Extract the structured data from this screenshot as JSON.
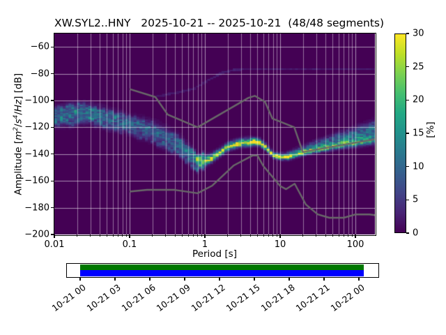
{
  "title": "XW.SYL2..HNY   2025-10-21 -- 2025-10-21  (48/48 segments)",
  "axes": {
    "xlabel": "Period [s]",
    "ylabel_parts": [
      {
        "t": "Amplitude ["
      },
      {
        "t": "m",
        "italic": true
      },
      {
        "t": "2",
        "italic": true,
        "sup": true
      },
      {
        "t": "/"
      },
      {
        "t": "s",
        "italic": true
      },
      {
        "t": "4",
        "italic": true,
        "sup": true
      },
      {
        "t": "/"
      },
      {
        "t": "Hz",
        "italic": true
      },
      {
        "t": "] [dB]"
      }
    ],
    "xtick_values": [
      0.01,
      0.1,
      1,
      10,
      100
    ],
    "xtick_labels": [
      "0.01",
      "0.1",
      "1",
      "10",
      "100"
    ],
    "ytick_values": [
      -60,
      -80,
      -100,
      -120,
      -140,
      -160,
      -180,
      -200
    ],
    "ytick_labels": [
      "−60",
      "−80",
      "−100",
      "−120",
      "−140",
      "−160",
      "−180",
      "−200"
    ],
    "xlim": [
      0.01,
      182
    ],
    "ylim": [
      -200,
      -50
    ],
    "xscale": "log",
    "grid": true
  },
  "colorbar": {
    "label": "[%]",
    "vmin": 0,
    "vmax": 30,
    "tick_values": [
      0,
      5,
      10,
      15,
      20,
      25,
      30
    ],
    "tick_labels": [
      "0",
      "5",
      "10",
      "15",
      "20",
      "25",
      "30"
    ],
    "colormap": "viridis",
    "viridis_stops": [
      [
        0.0,
        68,
        1,
        84
      ],
      [
        0.1,
        72,
        36,
        117
      ],
      [
        0.2,
        65,
        68,
        135
      ],
      [
        0.3,
        53,
        95,
        141
      ],
      [
        0.4,
        42,
        120,
        142
      ],
      [
        0.5,
        33,
        145,
        140
      ],
      [
        0.6,
        34,
        168,
        132
      ],
      [
        0.7,
        68,
        190,
        112
      ],
      [
        0.8,
        122,
        209,
        81
      ],
      [
        0.9,
        189,
        223,
        38
      ],
      [
        1.0,
        253,
        231,
        37
      ]
    ]
  },
  "chart_data": {
    "type": "heatmap",
    "description": "Probabilistic power spectral density (PPSD) of station XW.SYL2..HNY; probability [%] of PSD amplitude vs period, viridis colormap on dark purple background, with Peterson NHNM/NLNM reference curves in gray.",
    "period_step_octaves": 0.125,
    "db_bin_width_db": 1,
    "background_db_color": "#440154",
    "mode_curve_db": [
      [
        0.01,
        -112
      ],
      [
        0.016,
        -110.5
      ],
      [
        0.022,
        -109.5
      ],
      [
        0.032,
        -110
      ],
      [
        0.05,
        -113.5
      ],
      [
        0.08,
        -116.5
      ],
      [
        0.12,
        -119
      ],
      [
        0.2,
        -123.5
      ],
      [
        0.3,
        -128.5
      ],
      [
        0.45,
        -134
      ],
      [
        0.6,
        -140
      ],
      [
        0.7,
        -143.5
      ],
      [
        0.8,
        -146
      ],
      [
        1.0,
        -145.5
      ],
      [
        1.25,
        -143
      ],
      [
        1.6,
        -138.5
      ],
      [
        2.1,
        -134
      ],
      [
        3.0,
        -131.8
      ],
      [
        4.5,
        -130.8
      ],
      [
        5.5,
        -131.5
      ],
      [
        6.5,
        -135
      ],
      [
        8.0,
        -140.5
      ],
      [
        10,
        -142
      ],
      [
        13,
        -142
      ],
      [
        18,
        -139.5
      ],
      [
        27,
        -137
      ],
      [
        40,
        -135.5
      ],
      [
        60,
        -133.5
      ],
      [
        90,
        -132
      ],
      [
        130,
        -130.5
      ],
      [
        182,
        -129
      ]
    ],
    "mode_intensity_pct": [
      [
        0.01,
        9
      ],
      [
        0.02,
        11
      ],
      [
        0.03,
        10
      ],
      [
        0.05,
        9
      ],
      [
        0.1,
        9
      ],
      [
        0.2,
        8
      ],
      [
        0.35,
        8
      ],
      [
        0.5,
        10
      ],
      [
        0.7,
        14
      ],
      [
        0.85,
        20
      ],
      [
        1.0,
        24
      ],
      [
        1.3,
        26
      ],
      [
        1.8,
        28
      ],
      [
        2.5,
        29
      ],
      [
        3.5,
        30
      ],
      [
        5.0,
        30
      ],
      [
        6.0,
        28
      ],
      [
        7.5,
        26
      ],
      [
        9.0,
        26
      ],
      [
        12,
        27
      ],
      [
        18,
        26
      ],
      [
        30,
        24
      ],
      [
        50,
        22
      ],
      [
        80,
        20
      ],
      [
        120,
        18
      ],
      [
        182,
        16
      ]
    ],
    "sigma_below_db": [
      [
        0.01,
        4.2
      ],
      [
        0.05,
        4.2
      ],
      [
        0.1,
        3.6
      ],
      [
        0.3,
        4.2
      ],
      [
        0.6,
        3.0
      ],
      [
        0.9,
        2.0
      ],
      [
        1.5,
        1.6
      ],
      [
        4.0,
        1.6
      ],
      [
        8.0,
        1.3
      ],
      [
        30,
        1.3
      ],
      [
        80,
        1.6
      ],
      [
        182,
        2.0
      ]
    ],
    "sigma_above_db": [
      [
        0.01,
        4.2
      ],
      [
        0.05,
        4.2
      ],
      [
        0.1,
        3.8
      ],
      [
        0.3,
        5.0
      ],
      [
        0.6,
        4.0
      ],
      [
        0.9,
        2.6
      ],
      [
        1.5,
        1.8
      ],
      [
        4.0,
        1.8
      ],
      [
        8.0,
        1.4
      ],
      [
        20,
        1.6
      ],
      [
        50,
        2.6
      ],
      [
        100,
        3.6
      ],
      [
        182,
        4.6
      ]
    ],
    "upper_fan": {
      "min_period": 12,
      "offset_db": [
        [
          12,
          2.5
        ],
        [
          30,
          4.5
        ],
        [
          60,
          6.5
        ],
        [
          120,
          8.5
        ],
        [
          182,
          9.5
        ]
      ],
      "sigma_db": [
        [
          12,
          1.2
        ],
        [
          60,
          2.2
        ],
        [
          182,
          3.2
        ]
      ],
      "intensity_pct": [
        [
          12,
          3
        ],
        [
          30,
          6
        ],
        [
          60,
          7
        ],
        [
          182,
          8
        ]
      ]
    },
    "outlier_segment_db": [
      [
        0.22,
        -97
      ],
      [
        0.35,
        -95
      ],
      [
        0.7,
        -91.5
      ],
      [
        1.1,
        -85
      ],
      [
        1.7,
        -79
      ],
      [
        2.4,
        -77
      ],
      [
        4.0,
        -76.5
      ],
      [
        182,
        -76.5
      ]
    ],
    "outlier_intensity_pct": 2,
    "noise_models": {
      "color": "#696969",
      "nhnm": [
        [
          0.1,
          -91.5
        ],
        [
          0.22,
          -97.4
        ],
        [
          0.32,
          -110.5
        ],
        [
          0.8,
          -120.0
        ],
        [
          3.8,
          -98.0
        ],
        [
          4.6,
          -96.5
        ],
        [
          6.3,
          -101.0
        ],
        [
          7.9,
          -113.5
        ],
        [
          15.4,
          -120.0
        ],
        [
          20.0,
          -138.5
        ],
        [
          354.8,
          -126.0
        ]
      ],
      "nlnm": [
        [
          0.1,
          -168.0
        ],
        [
          0.17,
          -166.7
        ],
        [
          0.4,
          -166.7
        ],
        [
          0.8,
          -169.2
        ],
        [
          1.24,
          -163.7
        ],
        [
          2.4,
          -148.6
        ],
        [
          4.3,
          -141.1
        ],
        [
          5.0,
          -141.1
        ],
        [
          6.0,
          -149.0
        ],
        [
          10.0,
          -163.8
        ],
        [
          12.0,
          -166.2
        ],
        [
          15.6,
          -162.1
        ],
        [
          21.9,
          -177.5
        ],
        [
          31.6,
          -185.0
        ],
        [
          45.0,
          -187.5
        ],
        [
          70.0,
          -187.5
        ],
        [
          101.0,
          -185.0
        ],
        [
          154.0,
          -185.0
        ],
        [
          328.0,
          -187.5
        ]
      ]
    }
  },
  "timeline": {
    "tick_labels": [
      "10-21 00",
      "10-21 03",
      "10-21 06",
      "10-21 09",
      "10-21 12",
      "10-21 15",
      "10-21 18",
      "10-21 21",
      "10-22 00"
    ],
    "bar_top_color": "#007800",
    "bar_bottom_color": "#0000ff",
    "coverage_start_frac": 0.0415,
    "coverage_end_frac": 0.956
  },
  "colors": {
    "figure_background": "#ffffff",
    "grid_line": "rgba(255,255,255,0.55)",
    "spine": "#000000"
  }
}
